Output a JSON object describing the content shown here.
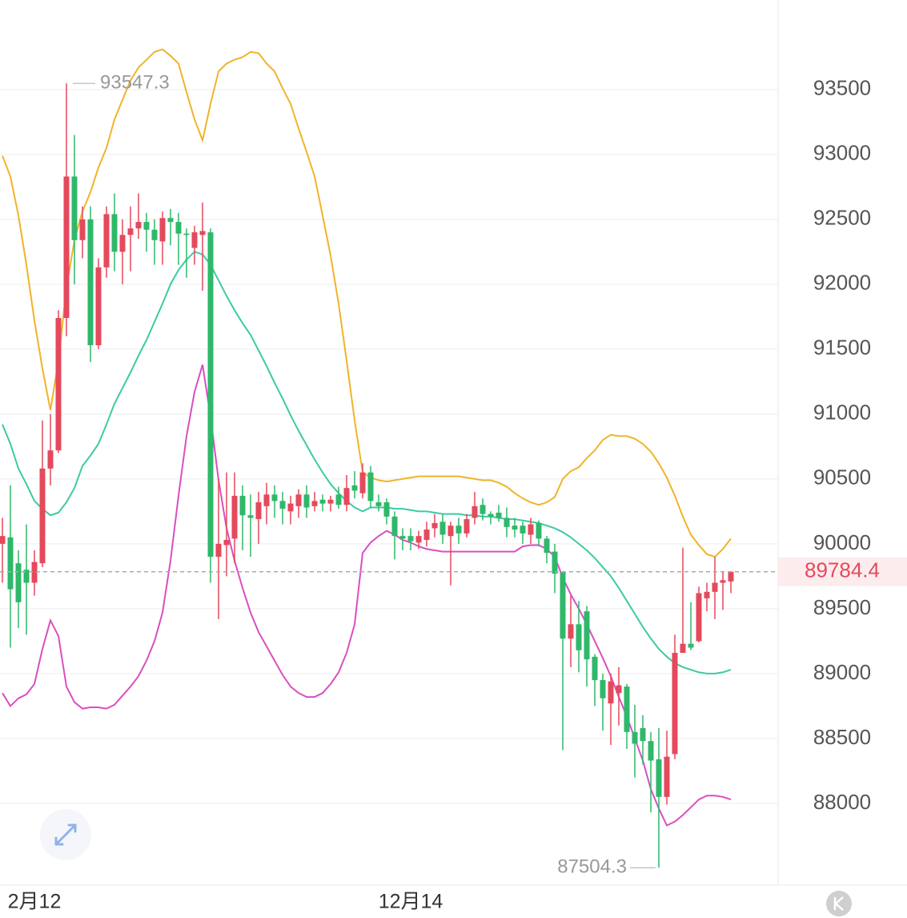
{
  "chart_data": {
    "type": "candlestick",
    "categories": [
      null,
      null,
      null,
      null,
      "2月12",
      null,
      null,
      null,
      null,
      null,
      null,
      null,
      null,
      null,
      null,
      null,
      null,
      null,
      null,
      null,
      null,
      null,
      null,
      null,
      null,
      null,
      null,
      null,
      null,
      null,
      null,
      null,
      null,
      null,
      null,
      null,
      null,
      null,
      null,
      null,
      null,
      null,
      null,
      null,
      null,
      null,
      null,
      null,
      null,
      null,
      null,
      "12月14",
      null,
      null,
      null,
      null,
      null,
      null,
      null,
      null,
      null,
      null,
      null,
      null,
      null,
      null,
      null,
      null,
      null,
      null,
      null,
      null,
      null,
      null,
      null,
      null,
      null,
      null,
      null,
      null,
      null,
      null,
      null,
      null,
      null,
      null,
      null,
      null,
      null,
      null,
      null,
      null
    ],
    "open": [
      90000,
      90050,
      89850,
      89800,
      89700,
      89850,
      90580,
      90720,
      91740,
      92830,
      92340,
      92500,
      91530,
      92130,
      92540,
      92250,
      92380,
      92430,
      92480,
      92420,
      92330,
      92510,
      92480,
      92390,
      92280,
      92380,
      92400,
      89900,
      89990,
      90040,
      90370,
      90220,
      90190,
      90290,
      90380,
      90330,
      90250,
      90290,
      90380,
      90290,
      90340,
      90310,
      90380,
      90300,
      90450,
      90390,
      90550,
      90320,
      90320,
      90210,
      90060,
      90060,
      90010,
      90030,
      90120,
      90170,
      90060,
      90140,
      90080,
      90200,
      90300,
      90230,
      90240,
      90200,
      90140,
      90140,
      90070,
      90160,
      90040,
      89940,
      89780,
      89270,
      89380,
      89480,
      89130,
      88950,
      88770,
      88850,
      88900,
      88550,
      88580,
      88480,
      88340,
      88050,
      88380,
      89160,
      89230,
      89250,
      89580,
      89630,
      89700,
      89710
    ],
    "high": [
      90200,
      90450,
      89950,
      90150,
      89950,
      90950,
      91000,
      91800,
      93547.3,
      93150,
      92600,
      92600,
      92200,
      92600,
      92700,
      92500,
      92600,
      92700,
      92550,
      92500,
      92560,
      92580,
      92550,
      92430,
      92450,
      92630,
      92430,
      90500,
      90550,
      90550,
      90450,
      90380,
      90400,
      90470,
      90450,
      90400,
      90370,
      90420,
      90450,
      90400,
      90380,
      90370,
      90440,
      90530,
      90560,
      90620,
      90600,
      90380,
      90350,
      90250,
      90120,
      90120,
      90100,
      90170,
      90230,
      90230,
      90170,
      90200,
      90230,
      90400,
      90350,
      90250,
      90300,
      90280,
      90200,
      90170,
      90200,
      90180,
      90060,
      90000,
      89790,
      89600,
      89560,
      89520,
      89150,
      89000,
      89000,
      89050,
      88920,
      88760,
      88680,
      88550,
      88580,
      88560,
      89300,
      89970,
      89550,
      89670,
      89700,
      89900,
      89790,
      89790
    ],
    "low": [
      89700,
      89200,
      89350,
      89300,
      89600,
      89820,
      90450,
      90700,
      91600,
      92000,
      92200,
      91400,
      91500,
      92050,
      92100,
      92000,
      92100,
      92350,
      92250,
      92150,
      92150,
      92300,
      92150,
      92050,
      92150,
      91950,
      89700,
      89420,
      89750,
      89850,
      89950,
      89900,
      90000,
      90150,
      90200,
      90150,
      90150,
      90200,
      90200,
      90250,
      90250,
      90250,
      90270,
      90250,
      90350,
      90350,
      90280,
      90250,
      90150,
      89880,
      89950,
      89950,
      89960,
      89980,
      90050,
      90000,
      89680,
      90000,
      90050,
      90150,
      90180,
      90150,
      90170,
      90050,
      90050,
      90000,
      90000,
      89980,
      89850,
      89620,
      88410,
      89050,
      89010,
      88900,
      88750,
      88560,
      88450,
      88600,
      88420,
      88200,
      88300,
      87930,
      87504.3,
      87990,
      88340,
      89180,
      89180,
      89240,
      89480,
      89420,
      89490,
      89620
    ],
    "close": [
      90060,
      89650,
      89550,
      89700,
      89860,
      90580,
      90720,
      91740,
      92830,
      92340,
      92500,
      91530,
      92130,
      92540,
      92250,
      92380,
      92430,
      92480,
      92420,
      92340,
      92510,
      92480,
      92390,
      92380,
      92400,
      92410,
      89900,
      90000,
      90030,
      90370,
      90220,
      90200,
      90320,
      90380,
      90330,
      90270,
      90310,
      90380,
      90280,
      90330,
      90310,
      90340,
      90300,
      90430,
      90410,
      90550,
      90330,
      90290,
      90210,
      90060,
      90040,
      90020,
      90060,
      90110,
      90160,
      90070,
      90140,
      90080,
      90190,
      90290,
      90230,
      90210,
      90200,
      90130,
      90110,
      90080,
      90150,
      90040,
      89930,
      89770,
      89270,
      89380,
      89180,
      89110,
      88950,
      88810,
      88940,
      88910,
      88550,
      88460,
      88480,
      88330,
      88050,
      88360,
      89160,
      89230,
      89200,
      89620,
      89630,
      89700,
      89720,
      89784.4
    ],
    "up_color": "#e5495c",
    "down_color": "#2fb86a",
    "lines": [
      {
        "color": "#f0b429",
        "values": [
          92990,
          92830,
          92530,
          92150,
          91720,
          91350,
          91030,
          91410,
          91970,
          92340,
          92560,
          92710,
          92900,
          93050,
          93270,
          93420,
          93570,
          93670,
          93730,
          93790,
          93810,
          93760,
          93700,
          93480,
          93270,
          93110,
          93390,
          93640,
          93700,
          93730,
          93750,
          93790,
          93780,
          93700,
          93640,
          93510,
          93390,
          93200,
          93020,
          92830,
          92530,
          92220,
          91850,
          91410,
          90950,
          90550,
          90510,
          90490,
          90480,
          90490,
          90500,
          90510,
          90520,
          90520,
          90520,
          90520,
          90520,
          90520,
          90510,
          90500,
          90490,
          90490,
          90470,
          90440,
          90390,
          90350,
          90320,
          90300,
          90320,
          90360,
          90500,
          90560,
          90590,
          90660,
          90720,
          90800,
          90840,
          90830,
          90830,
          90810,
          90770,
          90710,
          90620,
          90510,
          90370,
          90210,
          90070,
          89990,
          89920,
          89900,
          89960,
          90040
        ]
      },
      {
        "color": "#3ccaa5",
        "values": [
          90920,
          90770,
          90580,
          90460,
          90330,
          90270,
          90220,
          90240,
          90320,
          90430,
          90600,
          90680,
          90770,
          90920,
          91080,
          91200,
          91320,
          91450,
          91570,
          91710,
          91850,
          92000,
          92110,
          92190,
          92250,
          92230,
          92150,
          92030,
          91910,
          91800,
          91700,
          91610,
          91490,
          91370,
          91240,
          91120,
          90990,
          90870,
          90760,
          90650,
          90550,
          90460,
          90390,
          90330,
          90280,
          90250,
          90280,
          90280,
          90280,
          90270,
          90270,
          90260,
          90250,
          90250,
          90240,
          90230,
          90230,
          90230,
          90220,
          90220,
          90210,
          90210,
          90200,
          90190,
          90190,
          90180,
          90170,
          90160,
          90140,
          90120,
          90090,
          90050,
          90000,
          89950,
          89890,
          89820,
          89750,
          89660,
          89560,
          89460,
          89360,
          89270,
          89190,
          89130,
          89080,
          89050,
          89030,
          89010,
          89000,
          89000,
          89010,
          89030
        ]
      },
      {
        "color": "#d94fc0",
        "values": [
          88850,
          88750,
          88810,
          88840,
          88920,
          89190,
          89410,
          89290,
          88900,
          88780,
          88730,
          88740,
          88740,
          88730,
          88760,
          88830,
          88900,
          88980,
          89100,
          89250,
          89470,
          89870,
          90370,
          90830,
          91170,
          91380,
          90980,
          90490,
          90120,
          89870,
          89660,
          89470,
          89320,
          89210,
          89100,
          88990,
          88900,
          88850,
          88820,
          88820,
          88850,
          88920,
          89010,
          89160,
          89380,
          89930,
          90010,
          90060,
          90100,
          90070,
          90030,
          90010,
          89980,
          89960,
          89950,
          89940,
          89940,
          89940,
          89940,
          89940,
          89940,
          89940,
          89940,
          89940,
          89940,
          89980,
          89990,
          89990,
          89960,
          89900,
          89740,
          89610,
          89500,
          89380,
          89250,
          89120,
          88980,
          88820,
          88670,
          88500,
          88330,
          88110,
          87960,
          87830,
          87860,
          87910,
          87970,
          88030,
          88060,
          88060,
          88050,
          88030
        ]
      }
    ],
    "ylim": [
      87370,
      94190
    ],
    "yticks": [
      88000,
      88500,
      89000,
      89500,
      90000,
      90500,
      91000,
      91500,
      92000,
      92500,
      93000,
      93500
    ],
    "grid": true
  }
}
